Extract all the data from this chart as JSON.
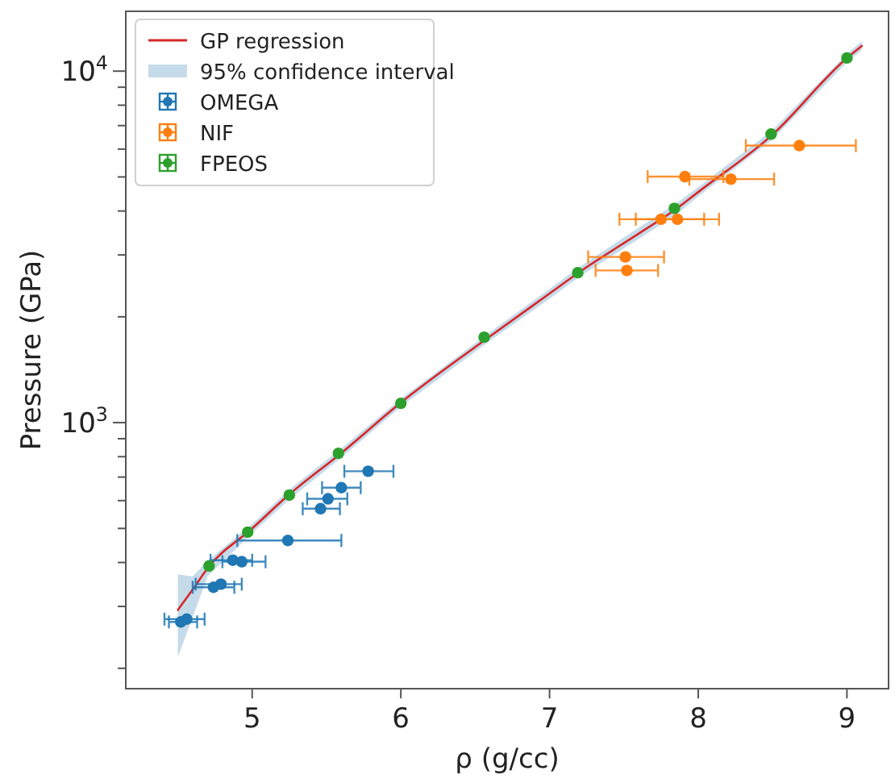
{
  "chart_data": {
    "type": "scatter",
    "xlabel": "ρ (g/cc)",
    "ylabel": "Pressure (GPa)",
    "log": "y",
    "xlim": [
      4.15,
      9.28
    ],
    "xticks": [
      5,
      6,
      7,
      8,
      9
    ],
    "ylim": [
      175,
      14800
    ],
    "yticks": [
      {
        "value": 200,
        "label": null
      },
      {
        "value": 300,
        "label": null
      },
      {
        "value": 400,
        "label": null
      },
      {
        "value": 500,
        "label": null
      },
      {
        "value": 600,
        "label": null
      },
      {
        "value": 700,
        "label": null
      },
      {
        "value": 800,
        "label": null
      },
      {
        "value": 900,
        "label": null
      },
      {
        "value": 1000,
        "label": "10$^{3}$"
      },
      {
        "value": 2000,
        "label": null
      },
      {
        "value": 3000,
        "label": null
      },
      {
        "value": 4000,
        "label": null
      },
      {
        "value": 5000,
        "label": null
      },
      {
        "value": 6000,
        "label": null
      },
      {
        "value": 7000,
        "label": null
      },
      {
        "value": 8000,
        "label": null
      },
      {
        "value": 9000,
        "label": null
      },
      {
        "value": 10000,
        "label": "10$^{4}$"
      }
    ],
    "legend": "top left",
    "grid": false,
    "marker": "circle",
    "annotations": [
      "95% confidence interval"
    ],
    "series": [
      {
        "name": "GP regression",
        "type": "line",
        "marker": "none",
        "color": "#d62728",
        "x": [
          4.5,
          4.6,
          4.7,
          5.0,
          5.25,
          5.6,
          6.0,
          6.6,
          7.0,
          7.2,
          7.6,
          7.85,
          8.0,
          8.5,
          9.0,
          9.1
        ],
        "values": [
          293,
          335,
          385,
          500,
          625,
          820,
          1140,
          1760,
          2330,
          2680,
          3450,
          4050,
          4530,
          6600,
          10900,
          11800
        ],
        "lower": [
          215,
          280,
          365,
          485,
          605,
          795,
          1110,
          1710,
          2250,
          2600,
          3330,
          3900,
          4400,
          6400,
          10600,
          11450
        ],
        "upper": [
          370,
          365,
          405,
          515,
          645,
          845,
          1170,
          1810,
          2400,
          2770,
          3590,
          4200,
          4680,
          6800,
          11200,
          12150
        ]
      },
      {
        "name": "OMEGA",
        "color": "#1f77b4",
        "x": [
          5.78,
          5.6,
          5.51,
          5.46,
          5.24,
          4.87,
          4.93,
          4.79,
          4.74,
          4.56,
          4.52
        ],
        "values": [
          727,
          653,
          607,
          569,
          462,
          406,
          402,
          347,
          340,
          276,
          271
        ],
        "xerrors": [
          [
            5.62,
            5.95
          ],
          [
            5.47,
            5.73
          ],
          [
            5.37,
            5.64
          ],
          [
            5.34,
            5.59
          ],
          [
            4.9,
            5.6
          ],
          [
            4.72,
            5.0
          ],
          [
            4.8,
            5.09
          ],
          [
            4.62,
            4.93
          ],
          [
            4.6,
            4.88
          ],
          [
            4.41,
            4.68
          ],
          [
            4.44,
            4.63
          ]
        ]
      },
      {
        "name": "NIF",
        "color": "#ff7f0e",
        "x": [
          8.68,
          7.91,
          8.22,
          7.75,
          7.86,
          7.51,
          7.52
        ],
        "values": [
          6140,
          5010,
          4930,
          3790,
          3790,
          2960,
          2710
        ],
        "xerrors": [
          [
            8.32,
            9.06
          ],
          [
            7.66,
            8.17
          ],
          [
            7.94,
            8.51
          ],
          [
            7.47,
            8.04
          ],
          [
            7.58,
            8.14
          ],
          [
            7.26,
            7.77
          ],
          [
            7.31,
            7.73
          ]
        ]
      },
      {
        "name": "FPEOS",
        "color": "#2ca02c",
        "x": [
          9.0,
          8.49,
          7.84,
          7.19,
          6.56,
          6.0,
          5.58,
          5.25,
          4.97,
          4.71
        ],
        "values": [
          10900,
          6620,
          4070,
          2670,
          1750,
          1135,
          818,
          622,
          488,
          391
        ]
      }
    ]
  }
}
